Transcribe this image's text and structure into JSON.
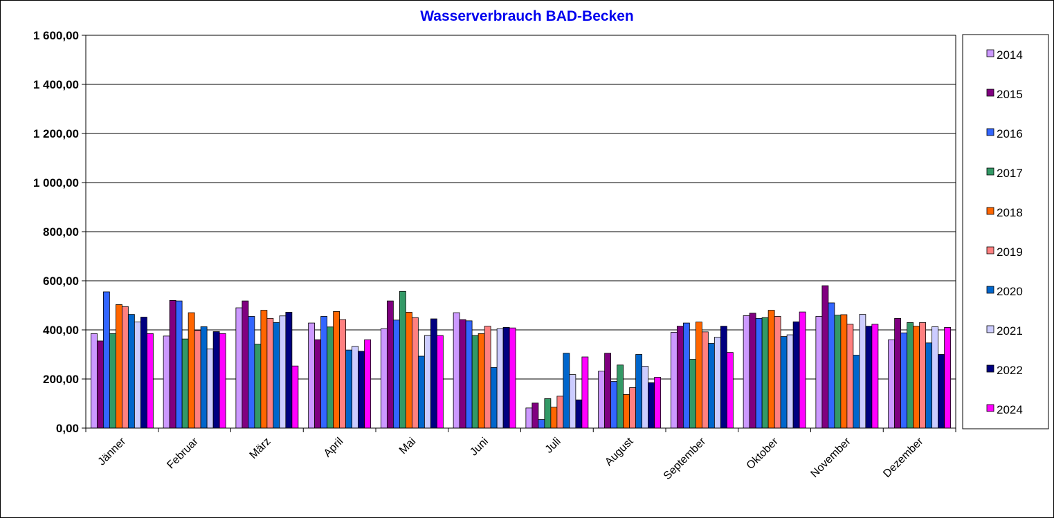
{
  "chart_data": {
    "type": "bar",
    "title": "Wasserverbrauch BAD-Becken",
    "xlabel": "",
    "ylabel": "",
    "ylim": [
      0,
      1600
    ],
    "yticks": [
      "0,00",
      "200,00",
      "400,00",
      "600,00",
      "800,00",
      "1 000,00",
      "1 200,00",
      "1 400,00",
      "1 600,00"
    ],
    "grid": true,
    "legend_position": "right",
    "categories": [
      "Jänner",
      "Februar",
      "März",
      "April",
      "Mai",
      "Juni",
      "Juli",
      "August",
      "September",
      "Oktober",
      "November",
      "Dezember"
    ],
    "series": [
      {
        "name": "2014",
        "color": "#cc99ff",
        "values": [
          385,
          375,
          490,
          428,
          405,
          470,
          82,
          232,
          390,
          458,
          455,
          360
        ]
      },
      {
        "name": "2015",
        "color": "#800080",
        "values": [
          355,
          520,
          518,
          360,
          518,
          442,
          102,
          305,
          415,
          468,
          580,
          447
        ]
      },
      {
        "name": "2016",
        "color": "#3366ff",
        "values": [
          555,
          518,
          455,
          455,
          440,
          437,
          35,
          190,
          428,
          447,
          510,
          388
        ]
      },
      {
        "name": "2017",
        "color": "#339966",
        "values": [
          385,
          363,
          342,
          412,
          557,
          377,
          120,
          257,
          280,
          450,
          460,
          430
        ]
      },
      {
        "name": "2018",
        "color": "#ff6600",
        "values": [
          503,
          470,
          480,
          475,
          472,
          385,
          85,
          137,
          432,
          480,
          462,
          415
        ]
      },
      {
        "name": "2019",
        "color": "#ff8080",
        "values": [
          495,
          398,
          447,
          442,
          450,
          415,
          130,
          165,
          392,
          455,
          423,
          430
        ]
      },
      {
        "name": "2020",
        "color": "#0066cc",
        "values": [
          463,
          413,
          430,
          318,
          293,
          247,
          305,
          300,
          345,
          373,
          297,
          347
        ]
      },
      {
        "name": "2021",
        "color": "#ccccff",
        "values": [
          432,
          322,
          457,
          333,
          377,
          405,
          218,
          252,
          370,
          380,
          463,
          413
        ]
      },
      {
        "name": "2022",
        "color": "#000080",
        "values": [
          452,
          393,
          472,
          313,
          445,
          410,
          115,
          185,
          415,
          433,
          415,
          300
        ]
      },
      {
        "name": "2024",
        "color": "#ff00ff",
        "values": [
          385,
          385,
          253,
          360,
          377,
          408,
          290,
          207,
          308,
          473,
          423,
          410
        ]
      }
    ]
  }
}
